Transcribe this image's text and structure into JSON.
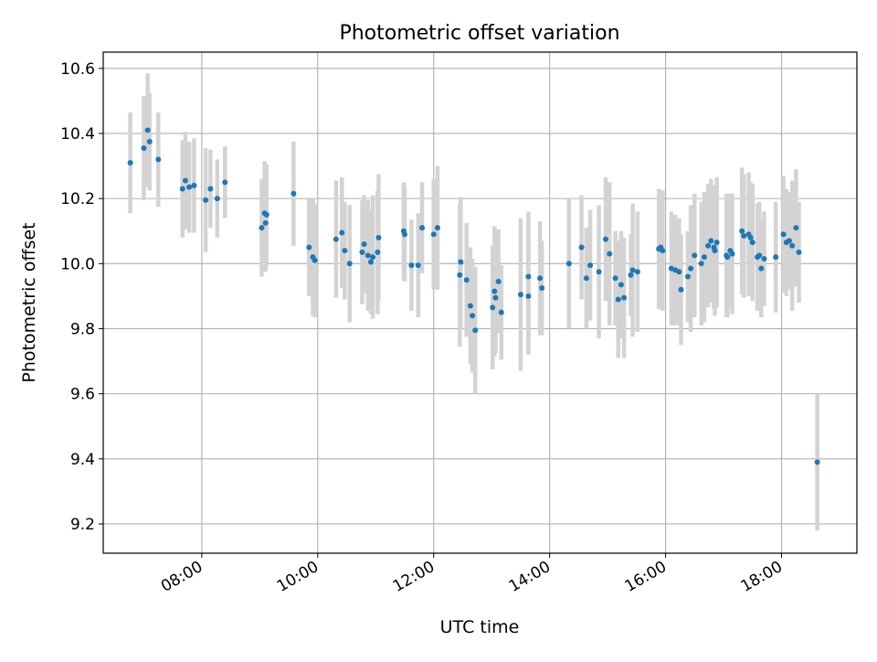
{
  "chart_data": {
    "type": "scatter",
    "title": "Photometric offset variation",
    "xlabel": "UTC time",
    "ylabel": "Photometric offset",
    "grid": true,
    "x_unit": "hours (UTC time of day)",
    "xlim": [
      "06:18",
      "19:18"
    ],
    "ylim": [
      9.11,
      10.65
    ],
    "x_ticks": [
      "08:00",
      "10:00",
      "12:00",
      "14:00",
      "16:00",
      "18:00"
    ],
    "y_ticks": [
      "9.2",
      "9.4",
      "9.6",
      "9.8",
      "10.0",
      "10.2",
      "10.4",
      "10.6"
    ],
    "error_bar_color": "#d3d3d3",
    "point_color": "#1f77b4",
    "points": [
      {
        "t": "06:46",
        "y": 10.31,
        "err": 0.155
      },
      {
        "t": "07:00",
        "y": 10.355,
        "err": 0.16
      },
      {
        "t": "07:04",
        "y": 10.41,
        "err": 0.175
      },
      {
        "t": "07:06",
        "y": 10.375,
        "err": 0.15
      },
      {
        "t": "07:15",
        "y": 10.32,
        "err": 0.145
      },
      {
        "t": "07:40",
        "y": 10.23,
        "err": 0.15
      },
      {
        "t": "07:43",
        "y": 10.255,
        "err": 0.15
      },
      {
        "t": "07:47",
        "y": 10.235,
        "err": 0.14
      },
      {
        "t": "07:52",
        "y": 10.24,
        "err": 0.145
      },
      {
        "t": "08:04",
        "y": 10.195,
        "err": 0.16
      },
      {
        "t": "08:09",
        "y": 10.23,
        "err": 0.12
      },
      {
        "t": "08:16",
        "y": 10.2,
        "err": 0.12
      },
      {
        "t": "08:24",
        "y": 10.25,
        "err": 0.11
      },
      {
        "t": "09:02",
        "y": 10.11,
        "err": 0.15
      },
      {
        "t": "09:05",
        "y": 10.155,
        "err": 0.16
      },
      {
        "t": "09:06",
        "y": 10.125,
        "err": 0.15
      },
      {
        "t": "09:07",
        "y": 10.15,
        "err": 0.155
      },
      {
        "t": "09:35",
        "y": 10.215,
        "err": 0.16
      },
      {
        "t": "09:51",
        "y": 10.05,
        "err": 0.15
      },
      {
        "t": "09:55",
        "y": 10.02,
        "err": 0.18
      },
      {
        "t": "09:57",
        "y": 10.01,
        "err": 0.175
      },
      {
        "t": "10:19",
        "y": 10.075,
        "err": 0.18
      },
      {
        "t": "10:25",
        "y": 10.095,
        "err": 0.17
      },
      {
        "t": "10:28",
        "y": 10.04,
        "err": 0.15
      },
      {
        "t": "10:33",
        "y": 10.0,
        "err": 0.18
      },
      {
        "t": "10:46",
        "y": 10.035,
        "err": 0.16
      },
      {
        "t": "10:48",
        "y": 10.06,
        "err": 0.15
      },
      {
        "t": "10:52",
        "y": 10.025,
        "err": 0.17
      },
      {
        "t": "10:55",
        "y": 10.005,
        "err": 0.16
      },
      {
        "t": "10:57",
        "y": 10.02,
        "err": 0.19
      },
      {
        "t": "11:02",
        "y": 10.035,
        "err": 0.19
      },
      {
        "t": "11:03",
        "y": 10.08,
        "err": 0.195
      },
      {
        "t": "11:29",
        "y": 10.1,
        "err": 0.15
      },
      {
        "t": "11:30",
        "y": 10.09,
        "err": 0.145
      },
      {
        "t": "11:37",
        "y": 9.995,
        "err": 0.14
      },
      {
        "t": "11:44",
        "y": 9.995,
        "err": 0.16
      },
      {
        "t": "11:48",
        "y": 10.11,
        "err": 0.14
      },
      {
        "t": "12:00",
        "y": 10.09,
        "err": 0.17
      },
      {
        "t": "12:04",
        "y": 10.11,
        "err": 0.19
      },
      {
        "t": "12:27",
        "y": 9.965,
        "err": 0.22
      },
      {
        "t": "12:28",
        "y": 10.005,
        "err": 0.2
      },
      {
        "t": "12:34",
        "y": 9.95,
        "err": 0.175
      },
      {
        "t": "12:38",
        "y": 9.87,
        "err": 0.18
      },
      {
        "t": "12:40",
        "y": 9.84,
        "err": 0.175
      },
      {
        "t": "12:43",
        "y": 9.795,
        "err": 0.195
      },
      {
        "t": "13:01",
        "y": 9.865,
        "err": 0.19
      },
      {
        "t": "13:03",
        "y": 9.915,
        "err": 0.2
      },
      {
        "t": "13:04",
        "y": 9.895,
        "err": 0.17
      },
      {
        "t": "13:07",
        "y": 9.945,
        "err": 0.16
      },
      {
        "t": "13:10",
        "y": 9.85,
        "err": 0.145
      },
      {
        "t": "13:30",
        "y": 9.905,
        "err": 0.235
      },
      {
        "t": "13:38",
        "y": 9.96,
        "err": 0.2
      },
      {
        "t": "13:38",
        "y": 9.9,
        "err": 0.18
      },
      {
        "t": "13:50",
        "y": 9.955,
        "err": 0.175
      },
      {
        "t": "13:52",
        "y": 9.925,
        "err": 0.145
      },
      {
        "t": "14:20",
        "y": 10.0,
        "err": 0.2
      },
      {
        "t": "14:33",
        "y": 10.05,
        "err": 0.16
      },
      {
        "t": "14:38",
        "y": 9.955,
        "err": 0.155
      },
      {
        "t": "14:42",
        "y": 9.995,
        "err": 0.17
      },
      {
        "t": "14:51",
        "y": 9.975,
        "err": 0.205
      },
      {
        "t": "14:58",
        "y": 10.075,
        "err": 0.19
      },
      {
        "t": "15:02",
        "y": 10.03,
        "err": 0.22
      },
      {
        "t": "15:08",
        "y": 9.955,
        "err": 0.145
      },
      {
        "t": "15:11",
        "y": 9.89,
        "err": 0.18
      },
      {
        "t": "15:14",
        "y": 9.935,
        "err": 0.165
      },
      {
        "t": "15:17",
        "y": 9.895,
        "err": 0.185
      },
      {
        "t": "15:24",
        "y": 9.965,
        "err": 0.125
      },
      {
        "t": "15:26",
        "y": 9.98,
        "err": 0.205
      },
      {
        "t": "15:31",
        "y": 9.975,
        "err": 0.185
      },
      {
        "t": "15:53",
        "y": 10.045,
        "err": 0.185
      },
      {
        "t": "15:55",
        "y": 10.05,
        "err": 0.175
      },
      {
        "t": "15:57",
        "y": 10.04,
        "err": 0.185
      },
      {
        "t": "16:06",
        "y": 9.985,
        "err": 0.175
      },
      {
        "t": "16:10",
        "y": 9.98,
        "err": 0.17
      },
      {
        "t": "16:14",
        "y": 9.975,
        "err": 0.165
      },
      {
        "t": "16:16",
        "y": 9.92,
        "err": 0.17
      },
      {
        "t": "16:23",
        "y": 9.96,
        "err": 0.14
      },
      {
        "t": "16:26",
        "y": 9.985,
        "err": 0.195
      },
      {
        "t": "16:30",
        "y": 10.025,
        "err": 0.19
      },
      {
        "t": "16:37",
        "y": 10.0,
        "err": 0.19
      },
      {
        "t": "16:40",
        "y": 10.02,
        "err": 0.2
      },
      {
        "t": "16:44",
        "y": 10.055,
        "err": 0.19
      },
      {
        "t": "16:47",
        "y": 10.07,
        "err": 0.19
      },
      {
        "t": "16:50",
        "y": 10.05,
        "err": 0.19
      },
      {
        "t": "16:51",
        "y": 10.04,
        "err": 0.2
      },
      {
        "t": "16:53",
        "y": 10.065,
        "err": 0.2
      },
      {
        "t": "17:03",
        "y": 10.025,
        "err": 0.19
      },
      {
        "t": "17:04",
        "y": 10.02,
        "err": 0.185
      },
      {
        "t": "17:07",
        "y": 10.04,
        "err": 0.175
      },
      {
        "t": "17:09",
        "y": 10.03,
        "err": 0.185
      },
      {
        "t": "17:19",
        "y": 10.1,
        "err": 0.195
      },
      {
        "t": "17:21",
        "y": 10.085,
        "err": 0.19
      },
      {
        "t": "17:26",
        "y": 10.09,
        "err": 0.19
      },
      {
        "t": "17:28",
        "y": 10.08,
        "err": 0.17
      },
      {
        "t": "17:30",
        "y": 10.065,
        "err": 0.18
      },
      {
        "t": "17:35",
        "y": 10.02,
        "err": 0.165
      },
      {
        "t": "17:37",
        "y": 10.025,
        "err": 0.165
      },
      {
        "t": "17:39",
        "y": 9.985,
        "err": 0.15
      },
      {
        "t": "17:42",
        "y": 10.015,
        "err": 0.145
      },
      {
        "t": "17:54",
        "y": 10.02,
        "err": 0.17
      },
      {
        "t": "18:02",
        "y": 10.09,
        "err": 0.18
      },
      {
        "t": "18:05",
        "y": 10.065,
        "err": 0.165
      },
      {
        "t": "18:08",
        "y": 10.07,
        "err": 0.15
      },
      {
        "t": "18:11",
        "y": 10.055,
        "err": 0.2
      },
      {
        "t": "18:15",
        "y": 10.11,
        "err": 0.18
      },
      {
        "t": "18:18",
        "y": 10.035,
        "err": 0.155
      },
      {
        "t": "18:37",
        "y": 9.39,
        "err": 0.21
      }
    ]
  }
}
